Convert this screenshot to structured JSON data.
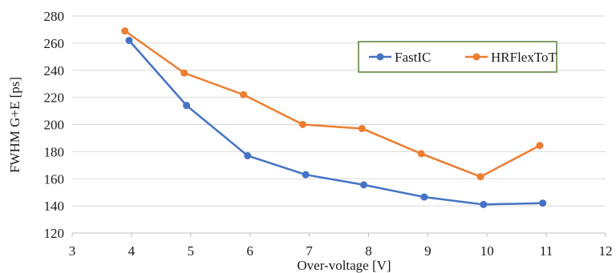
{
  "chart_data": {
    "type": "line",
    "title": "",
    "xlabel": "Over-voltage [V]",
    "ylabel": "FWHM G+E [ps]",
    "xlim": [
      3,
      12
    ],
    "ylim": [
      120,
      280
    ],
    "x_ticks": [
      3,
      4,
      5,
      6,
      7,
      8,
      9,
      10,
      11,
      12
    ],
    "y_ticks": [
      120,
      140,
      160,
      180,
      200,
      220,
      240,
      260,
      280
    ],
    "grid": "horizontal",
    "legend_position": "top-right",
    "series": [
      {
        "name": "FastIC",
        "color": "#4472C4",
        "x": [
          3.96,
          4.93,
          5.96,
          6.94,
          7.92,
          8.94,
          9.94,
          10.94
        ],
        "y": [
          262,
          214,
          177,
          163,
          155.5,
          146.5,
          141,
          142
        ]
      },
      {
        "name": "HRFlexToT",
        "color": "#ED7D31",
        "x": [
          3.89,
          4.89,
          5.89,
          6.89,
          7.89,
          8.89,
          9.89,
          10.89
        ],
        "y": [
          269,
          238,
          222,
          200,
          197,
          178.5,
          161.5,
          184.5
        ]
      }
    ]
  }
}
